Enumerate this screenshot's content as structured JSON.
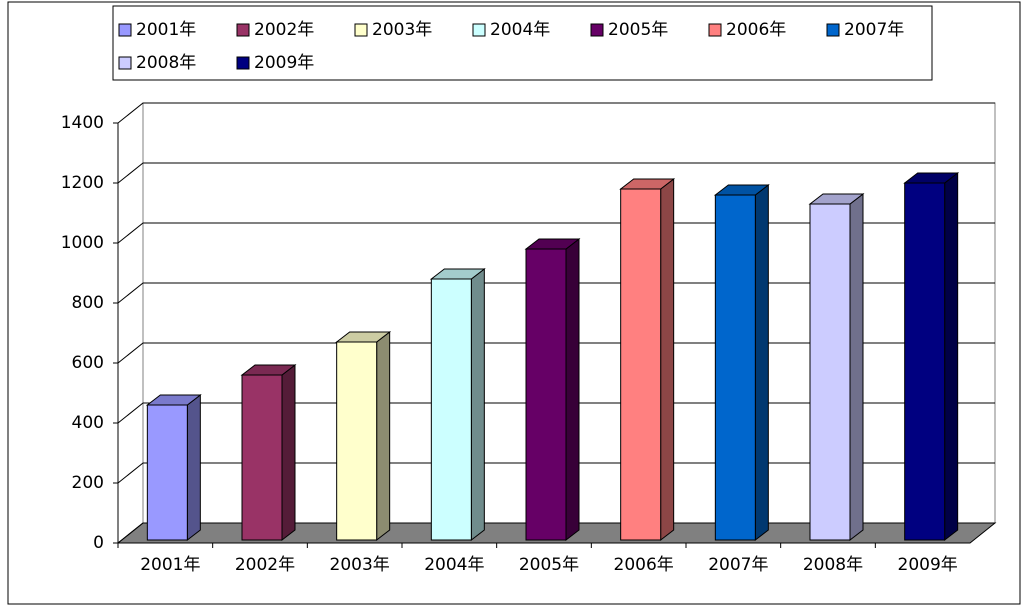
{
  "chart_data": {
    "type": "bar3d",
    "categories": [
      "2001年",
      "2002年",
      "2003年",
      "2004年",
      "2005年",
      "2006年",
      "2007年",
      "2008年",
      "2009年"
    ],
    "series": [
      {
        "name": "2001年",
        "color": "#9999ff",
        "values": [
          450,
          null,
          null,
          null,
          null,
          null,
          null,
          null,
          null
        ]
      },
      {
        "name": "2002年",
        "color": "#993366",
        "values": [
          null,
          550,
          null,
          null,
          null,
          null,
          null,
          null,
          null
        ]
      },
      {
        "name": "2003年",
        "color": "#ffffcc",
        "values": [
          null,
          null,
          660,
          null,
          null,
          null,
          null,
          null,
          null
        ]
      },
      {
        "name": "2004年",
        "color": "#ccffff",
        "values": [
          null,
          null,
          null,
          870,
          null,
          null,
          null,
          null,
          null
        ]
      },
      {
        "name": "2005年",
        "color": "#660066",
        "values": [
          null,
          null,
          null,
          null,
          970,
          null,
          null,
          null,
          null
        ]
      },
      {
        "name": "2006年",
        "color": "#ff8080",
        "values": [
          null,
          null,
          null,
          null,
          null,
          1170,
          null,
          null,
          null
        ]
      },
      {
        "name": "2007年",
        "color": "#0066cc",
        "values": [
          null,
          null,
          null,
          null,
          null,
          null,
          1150,
          null,
          null
        ]
      },
      {
        "name": "2008年",
        "color": "#ccccff",
        "values": [
          null,
          null,
          null,
          null,
          null,
          null,
          null,
          1120,
          null
        ]
      },
      {
        "name": "2009年",
        "color": "#000080",
        "values": [
          null,
          null,
          null,
          null,
          null,
          null,
          null,
          null,
          1190
        ]
      }
    ],
    "ylim": [
      0,
      1400
    ],
    "yticks": [
      0,
      200,
      400,
      600,
      800,
      1000,
      1200,
      1400
    ],
    "grid": true,
    "legend": "top"
  }
}
